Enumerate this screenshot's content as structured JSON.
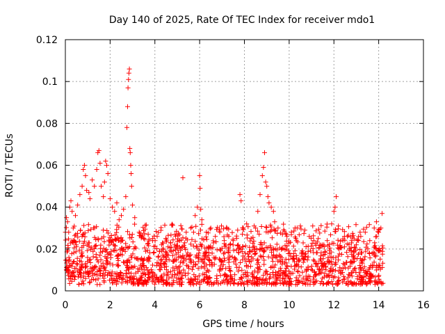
{
  "chart_data": {
    "type": "scatter",
    "title": "Day 140 of 2025, Rate Of TEC Index for receiver mdo1",
    "xlabel": "GPS time / hours",
    "ylabel": "ROTI / TECUs",
    "xlim": [
      0,
      16
    ],
    "ylim": [
      0,
      0.12
    ],
    "x_ticks": [
      0,
      2,
      4,
      6,
      8,
      10,
      12,
      14,
      16
    ],
    "x_tick_labels": [
      "0",
      "2",
      "4",
      "6",
      "8",
      "10",
      "12",
      "14",
      "16"
    ],
    "y_ticks": [
      0,
      0.02,
      0.04,
      0.06,
      0.08,
      0.1,
      0.12
    ],
    "y_tick_labels": [
      "0",
      "0.02",
      "0.04",
      "0.06",
      "0.08",
      "0.1",
      "0.12"
    ],
    "grid": true,
    "marker": "+",
    "color": "#ff0000",
    "series": [
      {
        "name": "ROTI",
        "points": [
          [
            0.05,
            0.035
          ],
          [
            0.1,
            0.033
          ],
          [
            0.15,
            0.028
          ],
          [
            0.2,
            0.04
          ],
          [
            0.25,
            0.043
          ],
          [
            0.3,
            0.038
          ],
          [
            0.35,
            0.03
          ],
          [
            0.45,
            0.036
          ],
          [
            0.55,
            0.041
          ],
          [
            0.65,
            0.046
          ],
          [
            0.75,
            0.05
          ],
          [
            0.8,
            0.058
          ],
          [
            0.85,
            0.06
          ],
          [
            0.9,
            0.055
          ],
          [
            0.95,
            0.048
          ],
          [
            1.05,
            0.047
          ],
          [
            1.1,
            0.044
          ],
          [
            1.2,
            0.053
          ],
          [
            1.3,
            0.05
          ],
          [
            1.4,
            0.058
          ],
          [
            1.45,
            0.066
          ],
          [
            1.5,
            0.067
          ],
          [
            1.55,
            0.061
          ],
          [
            1.6,
            0.05
          ],
          [
            1.7,
            0.045
          ],
          [
            1.75,
            0.052
          ],
          [
            1.8,
            0.062
          ],
          [
            1.85,
            0.06
          ],
          [
            1.9,
            0.056
          ],
          [
            2.0,
            0.044
          ],
          [
            2.1,
            0.04
          ],
          [
            2.2,
            0.038
          ],
          [
            2.3,
            0.042
          ],
          [
            2.4,
            0.034
          ],
          [
            2.5,
            0.036
          ],
          [
            2.6,
            0.039
          ],
          [
            2.7,
            0.045
          ],
          [
            2.75,
            0.078
          ],
          [
            2.78,
            0.088
          ],
          [
            2.8,
            0.097
          ],
          [
            2.82,
            0.101
          ],
          [
            2.84,
            0.104
          ],
          [
            2.86,
            0.106
          ],
          [
            2.88,
            0.068
          ],
          [
            2.9,
            0.066
          ],
          [
            2.92,
            0.06
          ],
          [
            2.94,
            0.056
          ],
          [
            2.96,
            0.05
          ],
          [
            3.0,
            0.041
          ],
          [
            3.1,
            0.035
          ],
          [
            3.3,
            0.028
          ],
          [
            3.5,
            0.025
          ],
          [
            3.7,
            0.027
          ],
          [
            3.9,
            0.024
          ],
          [
            4.1,
            0.026
          ],
          [
            4.3,
            0.022
          ],
          [
            4.5,
            0.025
          ],
          [
            4.7,
            0.023
          ],
          [
            4.9,
            0.027
          ],
          [
            5.1,
            0.024
          ],
          [
            5.25,
            0.054
          ],
          [
            5.4,
            0.028
          ],
          [
            5.6,
            0.03
          ],
          [
            5.8,
            0.036
          ],
          [
            5.9,
            0.04
          ],
          [
            6.0,
            0.055
          ],
          [
            6.02,
            0.049
          ],
          [
            6.05,
            0.039
          ],
          [
            6.1,
            0.034
          ],
          [
            6.3,
            0.028
          ],
          [
            6.5,
            0.03
          ],
          [
            6.7,
            0.026
          ],
          [
            6.9,
            0.028
          ],
          [
            7.1,
            0.024
          ],
          [
            7.3,
            0.026
          ],
          [
            7.5,
            0.024
          ],
          [
            7.7,
            0.029
          ],
          [
            7.8,
            0.046
          ],
          [
            7.85,
            0.043
          ],
          [
            7.95,
            0.03
          ],
          [
            8.1,
            0.032
          ],
          [
            8.3,
            0.025
          ],
          [
            8.5,
            0.03
          ],
          [
            8.6,
            0.038
          ],
          [
            8.7,
            0.046
          ],
          [
            8.8,
            0.055
          ],
          [
            8.85,
            0.059
          ],
          [
            8.9,
            0.066
          ],
          [
            8.95,
            0.052
          ],
          [
            9.0,
            0.05
          ],
          [
            9.05,
            0.045
          ],
          [
            9.1,
            0.042
          ],
          [
            9.2,
            0.04
          ],
          [
            9.3,
            0.038
          ],
          [
            9.35,
            0.033
          ],
          [
            9.5,
            0.03
          ],
          [
            9.7,
            0.027
          ],
          [
            9.9,
            0.026
          ],
          [
            10.1,
            0.028
          ],
          [
            10.3,
            0.025
          ],
          [
            10.5,
            0.031
          ],
          [
            10.7,
            0.029
          ],
          [
            10.9,
            0.026
          ],
          [
            11.1,
            0.024
          ],
          [
            11.3,
            0.025
          ],
          [
            11.5,
            0.022
          ],
          [
            11.7,
            0.024
          ],
          [
            11.9,
            0.032
          ],
          [
            12.0,
            0.038
          ],
          [
            12.05,
            0.04
          ],
          [
            12.1,
            0.045
          ],
          [
            12.2,
            0.031
          ],
          [
            12.4,
            0.024
          ],
          [
            12.6,
            0.026
          ],
          [
            12.8,
            0.024
          ],
          [
            13.0,
            0.022
          ],
          [
            13.2,
            0.026
          ],
          [
            13.4,
            0.028
          ],
          [
            13.6,
            0.024
          ],
          [
            13.8,
            0.03
          ],
          [
            13.9,
            0.033
          ],
          [
            14.0,
            0.028
          ],
          [
            14.1,
            0.03
          ],
          [
            14.15,
            0.037
          ]
        ],
        "band": {
          "description": "dense baseline scatter",
          "x_range": [
            0,
            14.2
          ],
          "y_min": 0.003,
          "y_max": 0.022
        }
      }
    ]
  }
}
